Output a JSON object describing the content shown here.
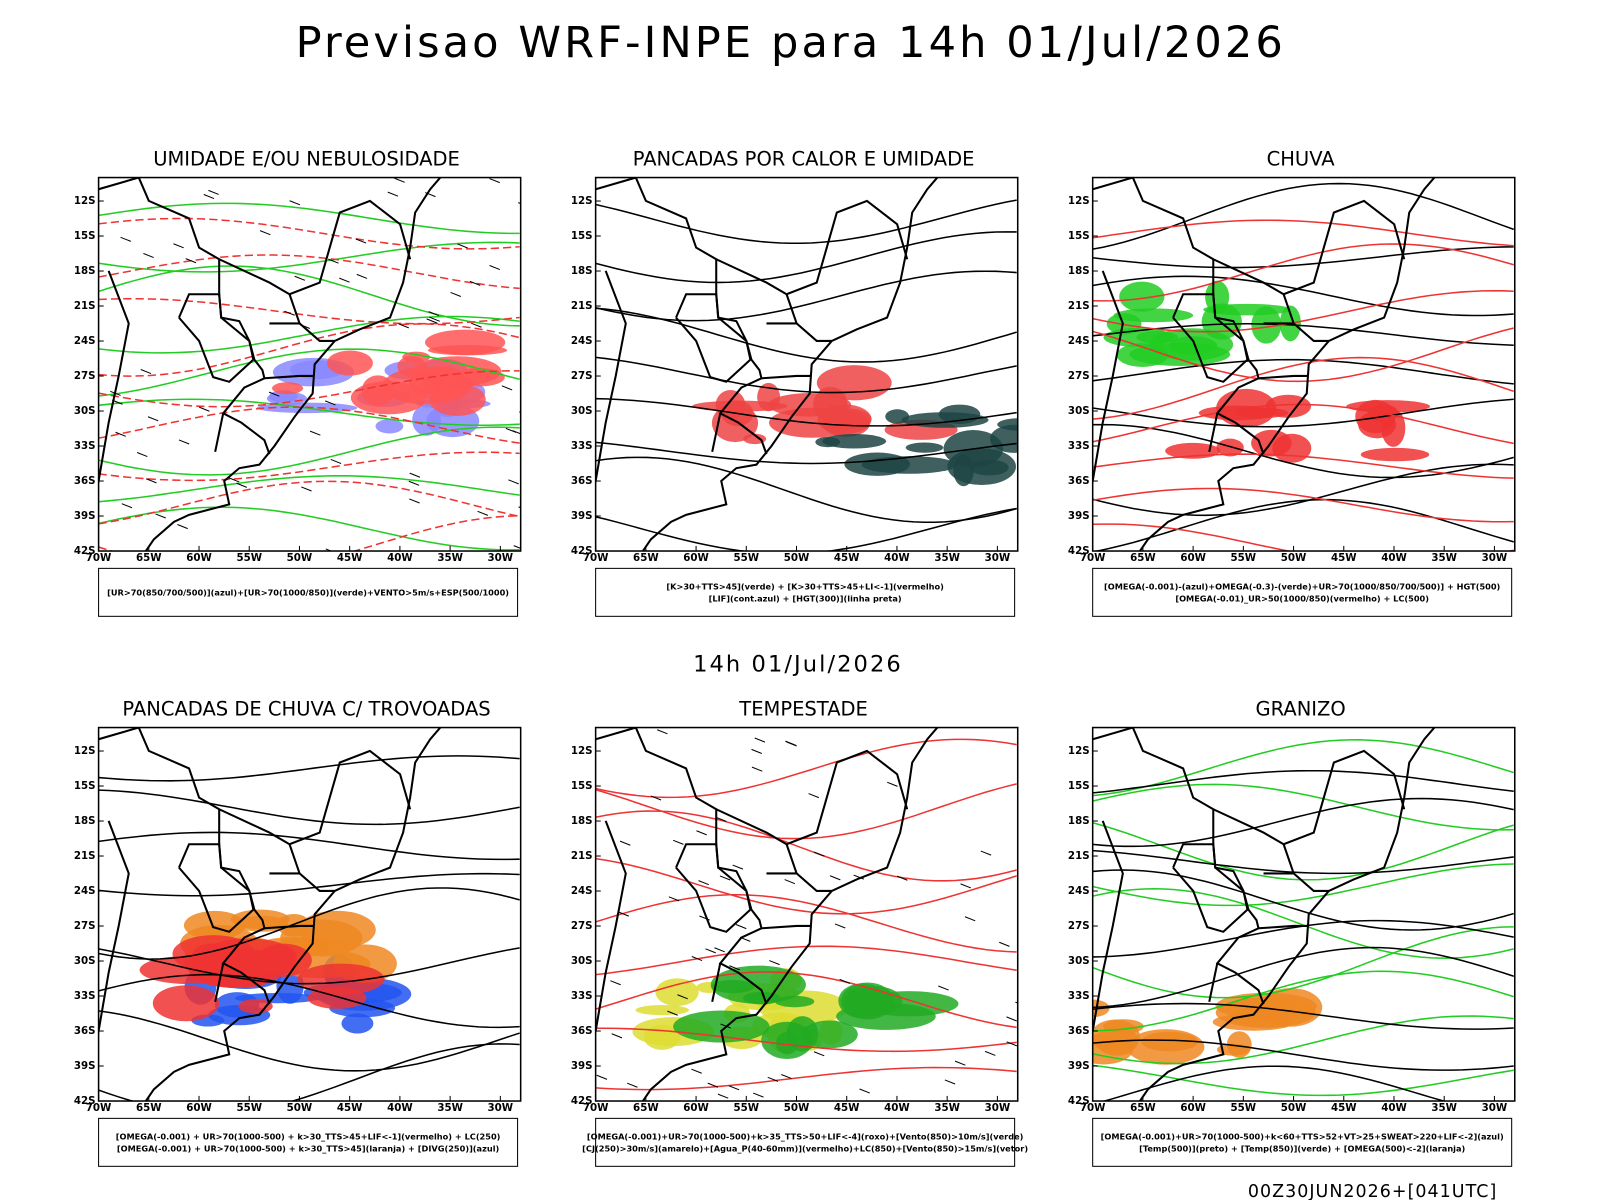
{
  "title": "Previsao WRF-INPE  para 14h 01/Jul/2026",
  "subtitle": "14h 01/Jul/2026",
  "footer": "00Z30JUN2026+[041UTC]",
  "lat_labels": [
    "12S",
    "15S",
    "18S",
    "21S",
    "24S",
    "27S",
    "30S",
    "33S",
    "36S",
    "39S",
    "42S"
  ],
  "lon_labels": [
    "70W",
    "65W",
    "60W",
    "55W",
    "50W",
    "45W",
    "40W",
    "35W",
    "30W"
  ],
  "panels": [
    {
      "title": "UMIDADE E/OU NEBULOSIDADE",
      "legend": [
        "[UR>70(850/700/500)](azul)+[UR>70(1000/850)](verde)+VENTO>5m/s+ESP(500/1000)"
      ]
    },
    {
      "title": "PANCADAS POR CALOR E UMIDADE",
      "legend": [
        "[K>30+TTS>45](verde) + [K>30+TTS>45+LI<-1](vermelho)",
        "[LIF](cont.azul) + [HGT(300)](linha preta)"
      ]
    },
    {
      "title": "CHUVA",
      "legend": [
        "[OMEGA(-0.001)-(azul)+OMEGA(-0.3)-(verde)+UR>70(1000/850/700/500)] + HGT(500)",
        "[OMEGA(-0.01)_UR>50(1000/850)(vermelho) + LC(500)"
      ]
    },
    {
      "title": "PANCADAS DE CHUVA C/ TROVOADAS",
      "legend": [
        "[OMEGA(-0.001) + UR>70(1000-500) + k>30_TTS>45+LIF<-1](vermelho) + LC(250)",
        "[OMEGA(-0.001) + UR>70(1000-500) + k>30_TTS>45](laranja) + [DIVG(250)](azul)"
      ]
    },
    {
      "title": "TEMPESTADE",
      "legend": [
        "[OMEGA(-0.001)+UR>70(1000-500)+k>35_TTS>50+LIF<-4](roxo)+[Vento(850)>10m/s](verde)",
        "[CJ(250)>30m/s](amarelo)+[Agua_P(40-60mm)](vermelho)+LC(850)+[Vento(850)>15m/s](vetor)"
      ]
    },
    {
      "title": "GRANIZO",
      "legend": [
        "[OMEGA(-0.001)+UR>70(1000-500)+k<60+TTS>52+VT>25+SWEAT>220+LIF<-2](azul)",
        "[Temp(500)](preto) + [Temp(850)](verde) + [OMEGA(500)<-2](laranja)"
      ]
    }
  ]
}
